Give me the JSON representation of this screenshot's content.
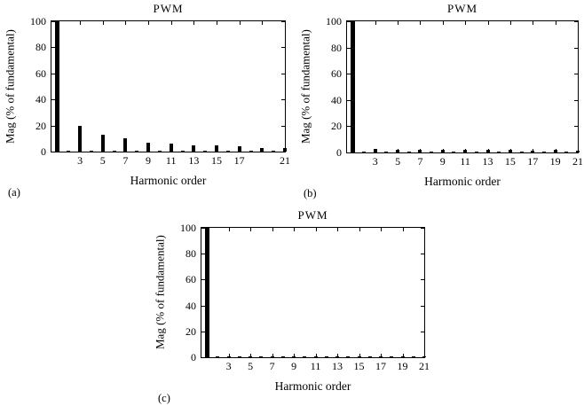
{
  "figure": {
    "background_color": "#ffffff",
    "ink_color": "#000000"
  },
  "chart_data": [
    {
      "type": "bar",
      "panel_label": "(a)",
      "title": "PWM",
      "xlabel": "Harmonic order",
      "ylabel": "Mag (% of fundamental)",
      "ylim": [
        0,
        100
      ],
      "yticks": [
        0,
        20,
        40,
        60,
        80,
        100
      ],
      "xlim": [
        0.5,
        21
      ],
      "xticks": [
        3,
        5,
        7,
        9,
        11,
        13,
        15,
        17,
        19,
        21
      ],
      "xtick_labels": [
        "3",
        "5",
        "7",
        "9",
        "11",
        "13",
        "15",
        "17",
        "",
        "21"
      ],
      "grid": false,
      "legend": false,
      "x": [
        1,
        2,
        3,
        4,
        5,
        6,
        7,
        8,
        9,
        10,
        11,
        12,
        13,
        14,
        15,
        16,
        17,
        18,
        19,
        20,
        21
      ],
      "values": [
        100,
        0.5,
        20,
        0.5,
        13,
        0.5,
        10,
        0.5,
        7,
        0.5,
        6,
        0.5,
        5,
        0.5,
        4.5,
        0.5,
        4,
        0.5,
        3,
        0.5,
        2.5
      ]
    },
    {
      "type": "bar",
      "panel_label": "(b)",
      "title": "PWM",
      "xlabel": "Harmonic order",
      "ylabel": "Mag (% of fundamental)",
      "ylim": [
        0,
        100
      ],
      "yticks": [
        0,
        20,
        40,
        60,
        80,
        100
      ],
      "xlim": [
        0.5,
        21
      ],
      "xticks": [
        3,
        5,
        7,
        9,
        11,
        13,
        15,
        17,
        19,
        21
      ],
      "xtick_labels": [
        "3",
        "5",
        "7",
        "9",
        "11",
        "13",
        "15",
        "17",
        "19",
        "21"
      ],
      "grid": false,
      "legend": false,
      "x": [
        1,
        2,
        3,
        4,
        5,
        6,
        7,
        8,
        9,
        10,
        11,
        12,
        13,
        14,
        15,
        16,
        17,
        18,
        19,
        20,
        21
      ],
      "values": [
        100,
        0.4,
        3,
        0.4,
        2.2,
        0.4,
        2.2,
        0.4,
        1.8,
        0.4,
        1.8,
        0.4,
        1.8,
        0.4,
        1.8,
        0.4,
        1.5,
        0.4,
        1.8,
        0.4,
        1.5
      ]
    },
    {
      "type": "bar",
      "panel_label": "(c)",
      "title": "PWM",
      "xlabel": "Harmonic order",
      "ylabel": "Mag (% of fundamental)",
      "ylim": [
        0,
        100
      ],
      "yticks": [
        0,
        20,
        40,
        60,
        80,
        100
      ],
      "xlim": [
        0.5,
        21
      ],
      "xticks": [
        3,
        5,
        7,
        9,
        11,
        13,
        15,
        17,
        19,
        21
      ],
      "xtick_labels": [
        "3",
        "5",
        "7",
        "9",
        "11",
        "13",
        "15",
        "17",
        "19",
        "21"
      ],
      "grid": false,
      "legend": false,
      "x": [
        1,
        2,
        3,
        4,
        5,
        6,
        7,
        8,
        9,
        10,
        11,
        12,
        13,
        14,
        15,
        16,
        17,
        18,
        19,
        20,
        21
      ],
      "values": [
        100,
        0.3,
        1,
        0.3,
        0.6,
        0.3,
        0.6,
        0.3,
        0.6,
        0.3,
        0.6,
        0.3,
        0.6,
        0.3,
        0.6,
        0.3,
        0.6,
        0.3,
        0.6,
        0.3,
        0.5
      ]
    }
  ]
}
